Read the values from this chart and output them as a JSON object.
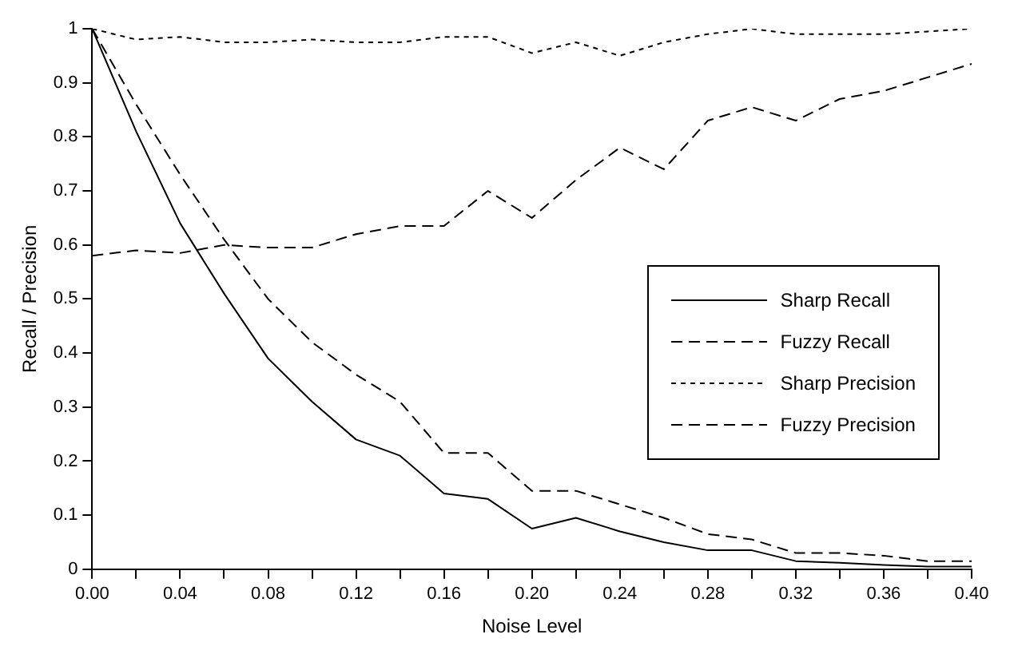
{
  "chart_data": {
    "type": "line",
    "xlabel": "Noise Level",
    "ylabel": "Recall / Precision",
    "x": [
      0,
      0.02,
      0.04,
      0.06,
      0.08,
      0.1,
      0.12,
      0.14,
      0.16,
      0.18,
      0.2,
      0.22,
      0.24,
      0.26,
      0.28,
      0.3,
      0.32,
      0.34,
      0.36,
      0.38,
      0.4
    ],
    "series": [
      {
        "name": "Sharp Recall",
        "color": "#000000",
        "line_style": "solid",
        "values": [
          1,
          0.81,
          0.64,
          0.51,
          0.39,
          0.31,
          0.24,
          0.21,
          0.14,
          0.13,
          0.075,
          0.095,
          0.07,
          0.05,
          0.035,
          0.035,
          0.015,
          0.012,
          0.008,
          0.005,
          0.005
        ]
      },
      {
        "name": "Fuzzy Recall",
        "color": "#000000",
        "line_style": "dashed",
        "values": [
          1,
          0.86,
          0.73,
          0.61,
          0.5,
          0.42,
          0.36,
          0.31,
          0.215,
          0.215,
          0.145,
          0.145,
          0.12,
          0.095,
          0.065,
          0.055,
          0.03,
          0.03,
          0.025,
          0.015,
          0.015
        ]
      },
      {
        "name": "Sharp Precision",
        "color": "#000000",
        "line_style": "dotted",
        "values": [
          1,
          0.98,
          0.985,
          0.975,
          0.975,
          0.98,
          0.975,
          0.975,
          0.985,
          0.985,
          0.955,
          0.975,
          0.95,
          0.975,
          0.99,
          1,
          0.99,
          0.99,
          0.99,
          0.995,
          1
        ]
      },
      {
        "name": "Fuzzy Precision",
        "color": "#000000",
        "line_style": "dashed",
        "values": [
          0.58,
          0.59,
          0.585,
          0.6,
          0.595,
          0.595,
          0.62,
          0.635,
          0.635,
          0.7,
          0.65,
          0.72,
          0.78,
          0.74,
          0.83,
          0.855,
          0.83,
          0.87,
          0.885,
          0.91,
          0.935
        ]
      }
    ],
    "xlim": [
      0,
      0.4
    ],
    "xticks": [
      {
        "value": 0,
        "label": "0.00"
      },
      {
        "value": 0.02,
        "label": null
      },
      {
        "value": 0.04,
        "label": "0.04"
      },
      {
        "value": 0.06,
        "label": null
      },
      {
        "value": 0.08,
        "label": "0.08"
      },
      {
        "value": 0.1,
        "label": null
      },
      {
        "value": 0.12,
        "label": "0.12"
      },
      {
        "value": 0.14,
        "label": null
      },
      {
        "value": 0.16,
        "label": "0.16"
      },
      {
        "value": 0.18,
        "label": null
      },
      {
        "value": 0.2,
        "label": "0.20"
      },
      {
        "value": 0.22,
        "label": null
      },
      {
        "value": 0.24,
        "label": "0.24"
      },
      {
        "value": 0.26,
        "label": null
      },
      {
        "value": 0.28,
        "label": "0.28"
      },
      {
        "value": 0.3,
        "label": null
      },
      {
        "value": 0.32,
        "label": "0.32"
      },
      {
        "value": 0.34,
        "label": null
      },
      {
        "value": 0.36,
        "label": "0.36"
      },
      {
        "value": 0.38,
        "label": null
      },
      {
        "value": 0.4,
        "label": "0.40"
      }
    ],
    "ylim": [
      0,
      1
    ],
    "yticks": [
      0,
      0.1,
      0.2,
      0.3,
      0.4,
      0.5,
      0.6,
      0.7,
      0.8,
      0.9,
      1
    ],
    "grid": false,
    "legend": "right",
    "marker": "none"
  }
}
